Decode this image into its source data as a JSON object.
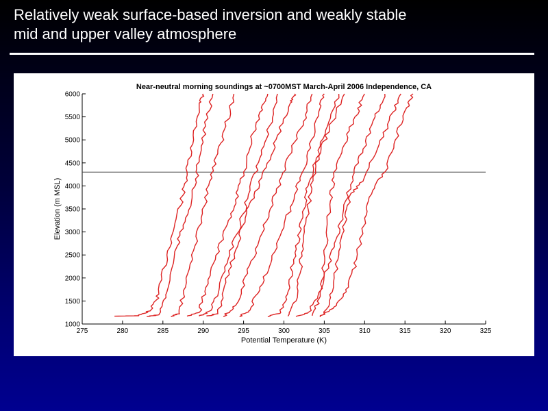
{
  "slide": {
    "title_lines": [
      "Relatively weak surface-based inversion and weakly stable",
      "mid and upper valley atmosphere"
    ]
  },
  "colors": {
    "background_top": "#000000",
    "background_bottom": "#000090",
    "title_text": "#ffffff",
    "series": "#dd2222",
    "reference_line": "#444444"
  },
  "chart_data": {
    "type": "line",
    "title": "Near-neutral morning soundings at ~0700MST March-April 2006 Independence, CA",
    "xlabel": "Potential Temperature (K)",
    "ylabel": "Elevation (m MSL)",
    "xlim": [
      275,
      325
    ],
    "ylim": [
      1000,
      6000
    ],
    "xticks": [
      275,
      280,
      285,
      290,
      295,
      300,
      305,
      310,
      315,
      320,
      325
    ],
    "yticks": [
      1000,
      1500,
      2000,
      2500,
      3000,
      3500,
      4000,
      4500,
      5000,
      5500,
      6000
    ],
    "grid": false,
    "legend": "none",
    "reference_line": {
      "orientation": "horizontal",
      "y": 4300
    },
    "series": [
      {
        "points": [
          [
            279.0,
            1170
          ],
          [
            282.0,
            1180
          ],
          [
            283.5,
            1300
          ],
          [
            284.5,
            1650
          ],
          [
            285.5,
            2500
          ],
          [
            286.5,
            3200
          ],
          [
            287.5,
            3800
          ],
          [
            288.0,
            4300
          ],
          [
            288.8,
            5000
          ],
          [
            289.5,
            5800
          ],
          [
            290.0,
            6000
          ]
        ]
      },
      {
        "points": [
          [
            283.0,
            1160
          ],
          [
            284.5,
            1200
          ],
          [
            285.5,
            1700
          ],
          [
            286.8,
            2700
          ],
          [
            287.8,
            3300
          ],
          [
            289.0,
            4000
          ],
          [
            289.5,
            4600
          ],
          [
            290.3,
            5300
          ],
          [
            291.2,
            6000
          ]
        ]
      },
      {
        "points": [
          [
            286.0,
            1160
          ],
          [
            287.0,
            1230
          ],
          [
            287.8,
            1800
          ],
          [
            288.8,
            2600
          ],
          [
            289.9,
            3400
          ],
          [
            290.8,
            4100
          ],
          [
            291.8,
            4700
          ],
          [
            292.8,
            5300
          ],
          [
            293.8,
            6000
          ]
        ]
      },
      {
        "points": [
          [
            288.0,
            1170
          ],
          [
            289.5,
            1250
          ],
          [
            290.2,
            1700
          ],
          [
            291.5,
            2400
          ],
          [
            292.8,
            3100
          ],
          [
            294.0,
            3700
          ],
          [
            295.0,
            4300
          ],
          [
            296.0,
            5000
          ],
          [
            297.0,
            5600
          ],
          [
            298.0,
            6000
          ]
        ]
      },
      {
        "points": [
          [
            289.5,
            1170
          ],
          [
            291.0,
            1300
          ],
          [
            292.0,
            1800
          ],
          [
            293.3,
            2500
          ],
          [
            294.6,
            3200
          ],
          [
            295.8,
            3900
          ],
          [
            297.0,
            4600
          ],
          [
            298.2,
            5300
          ],
          [
            299.2,
            6000
          ]
        ]
      },
      {
        "points": [
          [
            290.5,
            1170
          ],
          [
            291.8,
            1230
          ],
          [
            292.8,
            1900
          ],
          [
            294.0,
            2600
          ],
          [
            295.2,
            3300
          ],
          [
            296.3,
            3800
          ],
          [
            297.8,
            4400
          ],
          [
            299.2,
            5100
          ],
          [
            300.8,
            5800
          ],
          [
            301.3,
            6000
          ]
        ]
      },
      {
        "points": [
          [
            292.5,
            1160
          ],
          [
            294.0,
            1400
          ],
          [
            295.5,
            2100
          ],
          [
            296.9,
            2800
          ],
          [
            298.3,
            3500
          ],
          [
            299.7,
            4200
          ],
          [
            301.0,
            4800
          ],
          [
            302.4,
            5400
          ],
          [
            303.5,
            6000
          ]
        ]
      },
      {
        "points": [
          [
            294.5,
            1160
          ],
          [
            295.8,
            1300
          ],
          [
            297.0,
            1800
          ],
          [
            298.5,
            2400
          ],
          [
            300.0,
            3100
          ],
          [
            301.3,
            3800
          ],
          [
            302.3,
            4300
          ],
          [
            303.4,
            5000
          ],
          [
            304.5,
            5700
          ],
          [
            305.0,
            6000
          ]
        ]
      },
      {
        "points": [
          [
            298.0,
            1160
          ],
          [
            299.6,
            1250
          ],
          [
            300.5,
            1700
          ],
          [
            301.2,
            2400
          ],
          [
            302.0,
            3000
          ],
          [
            302.5,
            3500
          ],
          [
            303.0,
            4000
          ],
          [
            304.0,
            4600
          ],
          [
            305.4,
            5300
          ],
          [
            306.8,
            6000
          ]
        ]
      },
      {
        "points": [
          [
            300.5,
            1170
          ],
          [
            301.5,
            1500
          ],
          [
            302.0,
            2100
          ],
          [
            302.3,
            2700
          ],
          [
            303.0,
            3500
          ],
          [
            303.6,
            4200
          ],
          [
            304.6,
            4800
          ],
          [
            306.0,
            5400
          ],
          [
            307.5,
            6000
          ]
        ]
      },
      {
        "points": [
          [
            303.5,
            1180
          ],
          [
            304.5,
            1600
          ],
          [
            305.0,
            2300
          ],
          [
            305.3,
            2900
          ],
          [
            305.7,
            3600
          ],
          [
            306.2,
            4200
          ],
          [
            307.5,
            4900
          ],
          [
            308.8,
            5500
          ],
          [
            310.0,
            6000
          ]
        ]
      },
      {
        "points": [
          [
            301.5,
            1160
          ],
          [
            303.0,
            1250
          ],
          [
            304.2,
            1600
          ],
          [
            305.5,
            2300
          ],
          [
            306.6,
            2900
          ],
          [
            307.4,
            3500
          ],
          [
            308.5,
            4200
          ],
          [
            309.8,
            4800
          ],
          [
            311.3,
            5500
          ],
          [
            312.5,
            6000
          ]
        ]
      },
      {
        "points": [
          [
            305.0,
            1200
          ],
          [
            306.0,
            1700
          ],
          [
            306.8,
            2500
          ],
          [
            307.6,
            3200
          ],
          [
            308.2,
            3800
          ],
          [
            309.8,
            4100
          ],
          [
            311.8,
            4900
          ],
          [
            313.5,
            5600
          ],
          [
            314.5,
            6000
          ]
        ]
      },
      {
        "points": [
          [
            304.5,
            1150
          ],
          [
            306.5,
            1400
          ],
          [
            308.0,
            1800
          ],
          [
            309.0,
            2400
          ],
          [
            310.0,
            3300
          ],
          [
            311.0,
            3900
          ],
          [
            312.5,
            4300
          ],
          [
            313.8,
            5000
          ],
          [
            315.2,
            5700
          ],
          [
            316.0,
            6000
          ]
        ]
      }
    ]
  }
}
